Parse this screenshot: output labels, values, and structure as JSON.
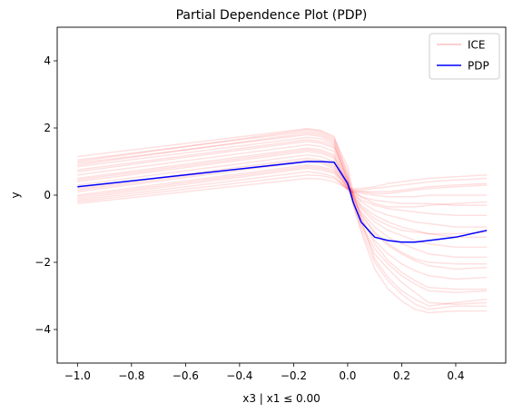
{
  "chart_data": {
    "type": "line",
    "title": "Partial Dependence Plot (PDP)",
    "xlabel": "x3 | x1 ≤ 0.00",
    "ylabel": "y",
    "xlim": [
      -1.075,
      0.585
    ],
    "ylim": [
      -5,
      5
    ],
    "x_ticks": [
      {
        "value": -1.0,
        "label": "−1.0"
      },
      {
        "value": -0.8,
        "label": "−0.8"
      },
      {
        "value": -0.6,
        "label": "−0.6"
      },
      {
        "value": -0.4,
        "label": "−0.4"
      },
      {
        "value": -0.2,
        "label": "−0.2"
      },
      {
        "value": 0.0,
        "label": "0.0"
      },
      {
        "value": 0.2,
        "label": "0.2"
      },
      {
        "value": 0.4,
        "label": "0.4"
      }
    ],
    "y_ticks": [
      {
        "value": -4,
        "label": "−4"
      },
      {
        "value": -2,
        "label": "−2"
      },
      {
        "value": 0,
        "label": "0"
      },
      {
        "value": 2,
        "label": "2"
      },
      {
        "value": 4,
        "label": "4"
      }
    ],
    "grid": false,
    "legend": {
      "position": "top-right",
      "entries": [
        {
          "name": "ICE",
          "color": "#ffc0c0"
        },
        {
          "name": "PDP",
          "color": "#0000ff"
        }
      ]
    },
    "ice_color": "#ff0000",
    "ice_opacity": 0.12,
    "x": [
      -1.0,
      -0.15,
      -0.1,
      -0.05,
      0.0,
      0.02,
      0.05,
      0.1,
      0.15,
      0.2,
      0.25,
      0.3,
      0.4,
      0.515
    ],
    "ice_curves": [
      [
        1.15,
        1.98,
        1.93,
        1.75,
        0.6,
        -0.2,
        -0.9,
        -1.75,
        -2.2,
        -2.6,
        -2.9,
        -3.2,
        -3.25,
        -3.2
      ],
      [
        1.05,
        1.9,
        1.85,
        1.65,
        0.5,
        -0.25,
        -1.0,
        -2.0,
        -2.55,
        -2.95,
        -3.25,
        -3.4,
        -3.3,
        -3.3
      ],
      [
        0.95,
        1.8,
        1.75,
        1.55,
        0.4,
        -0.3,
        -1.1,
        -2.2,
        -2.8,
        -3.15,
        -3.4,
        -3.5,
        -3.45,
        -3.45
      ],
      [
        0.85,
        1.72,
        1.68,
        1.5,
        0.45,
        -0.2,
        -0.85,
        -1.6,
        -2.05,
        -2.4,
        -2.65,
        -2.85,
        -2.9,
        -2.85
      ],
      [
        0.7,
        1.6,
        1.55,
        1.4,
        0.4,
        -0.15,
        -0.7,
        -1.35,
        -1.75,
        -2.05,
        -2.25,
        -2.4,
        -2.5,
        -2.45
      ],
      [
        0.6,
        1.5,
        1.45,
        1.3,
        0.35,
        -0.1,
        -0.6,
        -1.15,
        -1.5,
        -1.75,
        -1.95,
        -2.1,
        -2.2,
        -2.15
      ],
      [
        0.5,
        1.4,
        1.35,
        1.2,
        0.3,
        -0.1,
        -0.5,
        -0.95,
        -1.25,
        -1.45,
        -1.6,
        -1.75,
        -1.85,
        -1.85
      ],
      [
        0.4,
        1.3,
        1.25,
        1.1,
        0.3,
        -0.05,
        -0.4,
        -0.8,
        -1.05,
        -1.2,
        -1.35,
        -1.45,
        -1.55,
        -1.55
      ],
      [
        0.3,
        1.2,
        1.15,
        1.0,
        0.25,
        0.0,
        -0.3,
        -0.6,
        -0.8,
        -0.95,
        -1.05,
        -1.15,
        -1.25,
        -1.25
      ],
      [
        0.2,
        1.1,
        1.05,
        0.9,
        0.25,
        0.05,
        -0.2,
        -0.45,
        -0.6,
        -0.7,
        -0.8,
        -0.85,
        -0.95,
        -0.95
      ],
      [
        0.1,
        1.0,
        0.95,
        0.8,
        0.2,
        0.05,
        -0.15,
        -0.3,
        -0.4,
        -0.45,
        -0.5,
        -0.55,
        -0.6,
        -0.6
      ],
      [
        0.0,
        0.9,
        0.85,
        0.75,
        0.2,
        0.1,
        -0.05,
        -0.15,
        -0.2,
        -0.25,
        -0.25,
        -0.25,
        -0.3,
        -0.3
      ],
      [
        -0.1,
        0.8,
        0.75,
        0.65,
        0.15,
        0.1,
        0.05,
        0.0,
        -0.05,
        -0.05,
        -0.05,
        0.0,
        0.0,
        0.0
      ],
      [
        -0.15,
        0.7,
        0.65,
        0.55,
        0.15,
        0.1,
        0.1,
        0.1,
        0.1,
        0.15,
        0.2,
        0.25,
        0.3,
        0.35
      ],
      [
        -0.2,
        0.6,
        0.58,
        0.5,
        0.2,
        0.15,
        0.15,
        0.2,
        0.25,
        0.3,
        0.35,
        0.4,
        0.45,
        0.5
      ],
      [
        -0.25,
        0.5,
        0.48,
        0.4,
        0.2,
        0.2,
        0.2,
        0.25,
        0.35,
        0.4,
        0.45,
        0.5,
        0.55,
        0.6
      ],
      [
        0.9,
        1.85,
        1.8,
        1.6,
        0.7,
        0.0,
        -0.65,
        -1.45,
        -1.95,
        -2.3,
        -2.55,
        -2.75,
        -2.8,
        -2.8
      ],
      [
        0.75,
        1.65,
        1.6,
        1.45,
        0.55,
        -0.05,
        -0.55,
        -1.1,
        -1.45,
        -1.7,
        -1.9,
        -2.0,
        -2.05,
        -2.05
      ],
      [
        0.45,
        1.35,
        1.3,
        1.15,
        0.35,
        0.0,
        -0.35,
        -0.7,
        -0.9,
        -1.05,
        -1.1,
        -1.15,
        -1.15,
        -1.1
      ],
      [
        0.15,
        1.05,
        1.0,
        0.85,
        0.3,
        0.1,
        -0.05,
        -0.25,
        -0.35,
        -0.35,
        -0.35,
        -0.3,
        -0.25,
        -0.2
      ],
      [
        -0.05,
        0.85,
        0.8,
        0.7,
        0.25,
        0.15,
        0.1,
        0.05,
        0.05,
        0.1,
        0.15,
        0.2,
        0.25,
        0.3
      ],
      [
        1.0,
        1.95,
        1.9,
        1.7,
        0.85,
        0.1,
        -0.75,
        -1.9,
        -2.45,
        -2.85,
        -3.1,
        -3.3,
        -3.2,
        -3.1
      ]
    ],
    "series": [
      {
        "name": "PDP",
        "values": [
          0.25,
          1.0,
          1.0,
          0.98,
          0.35,
          -0.2,
          -0.8,
          -1.25,
          -1.35,
          -1.4,
          -1.4,
          -1.35,
          -1.25,
          -1.05
        ]
      }
    ]
  }
}
